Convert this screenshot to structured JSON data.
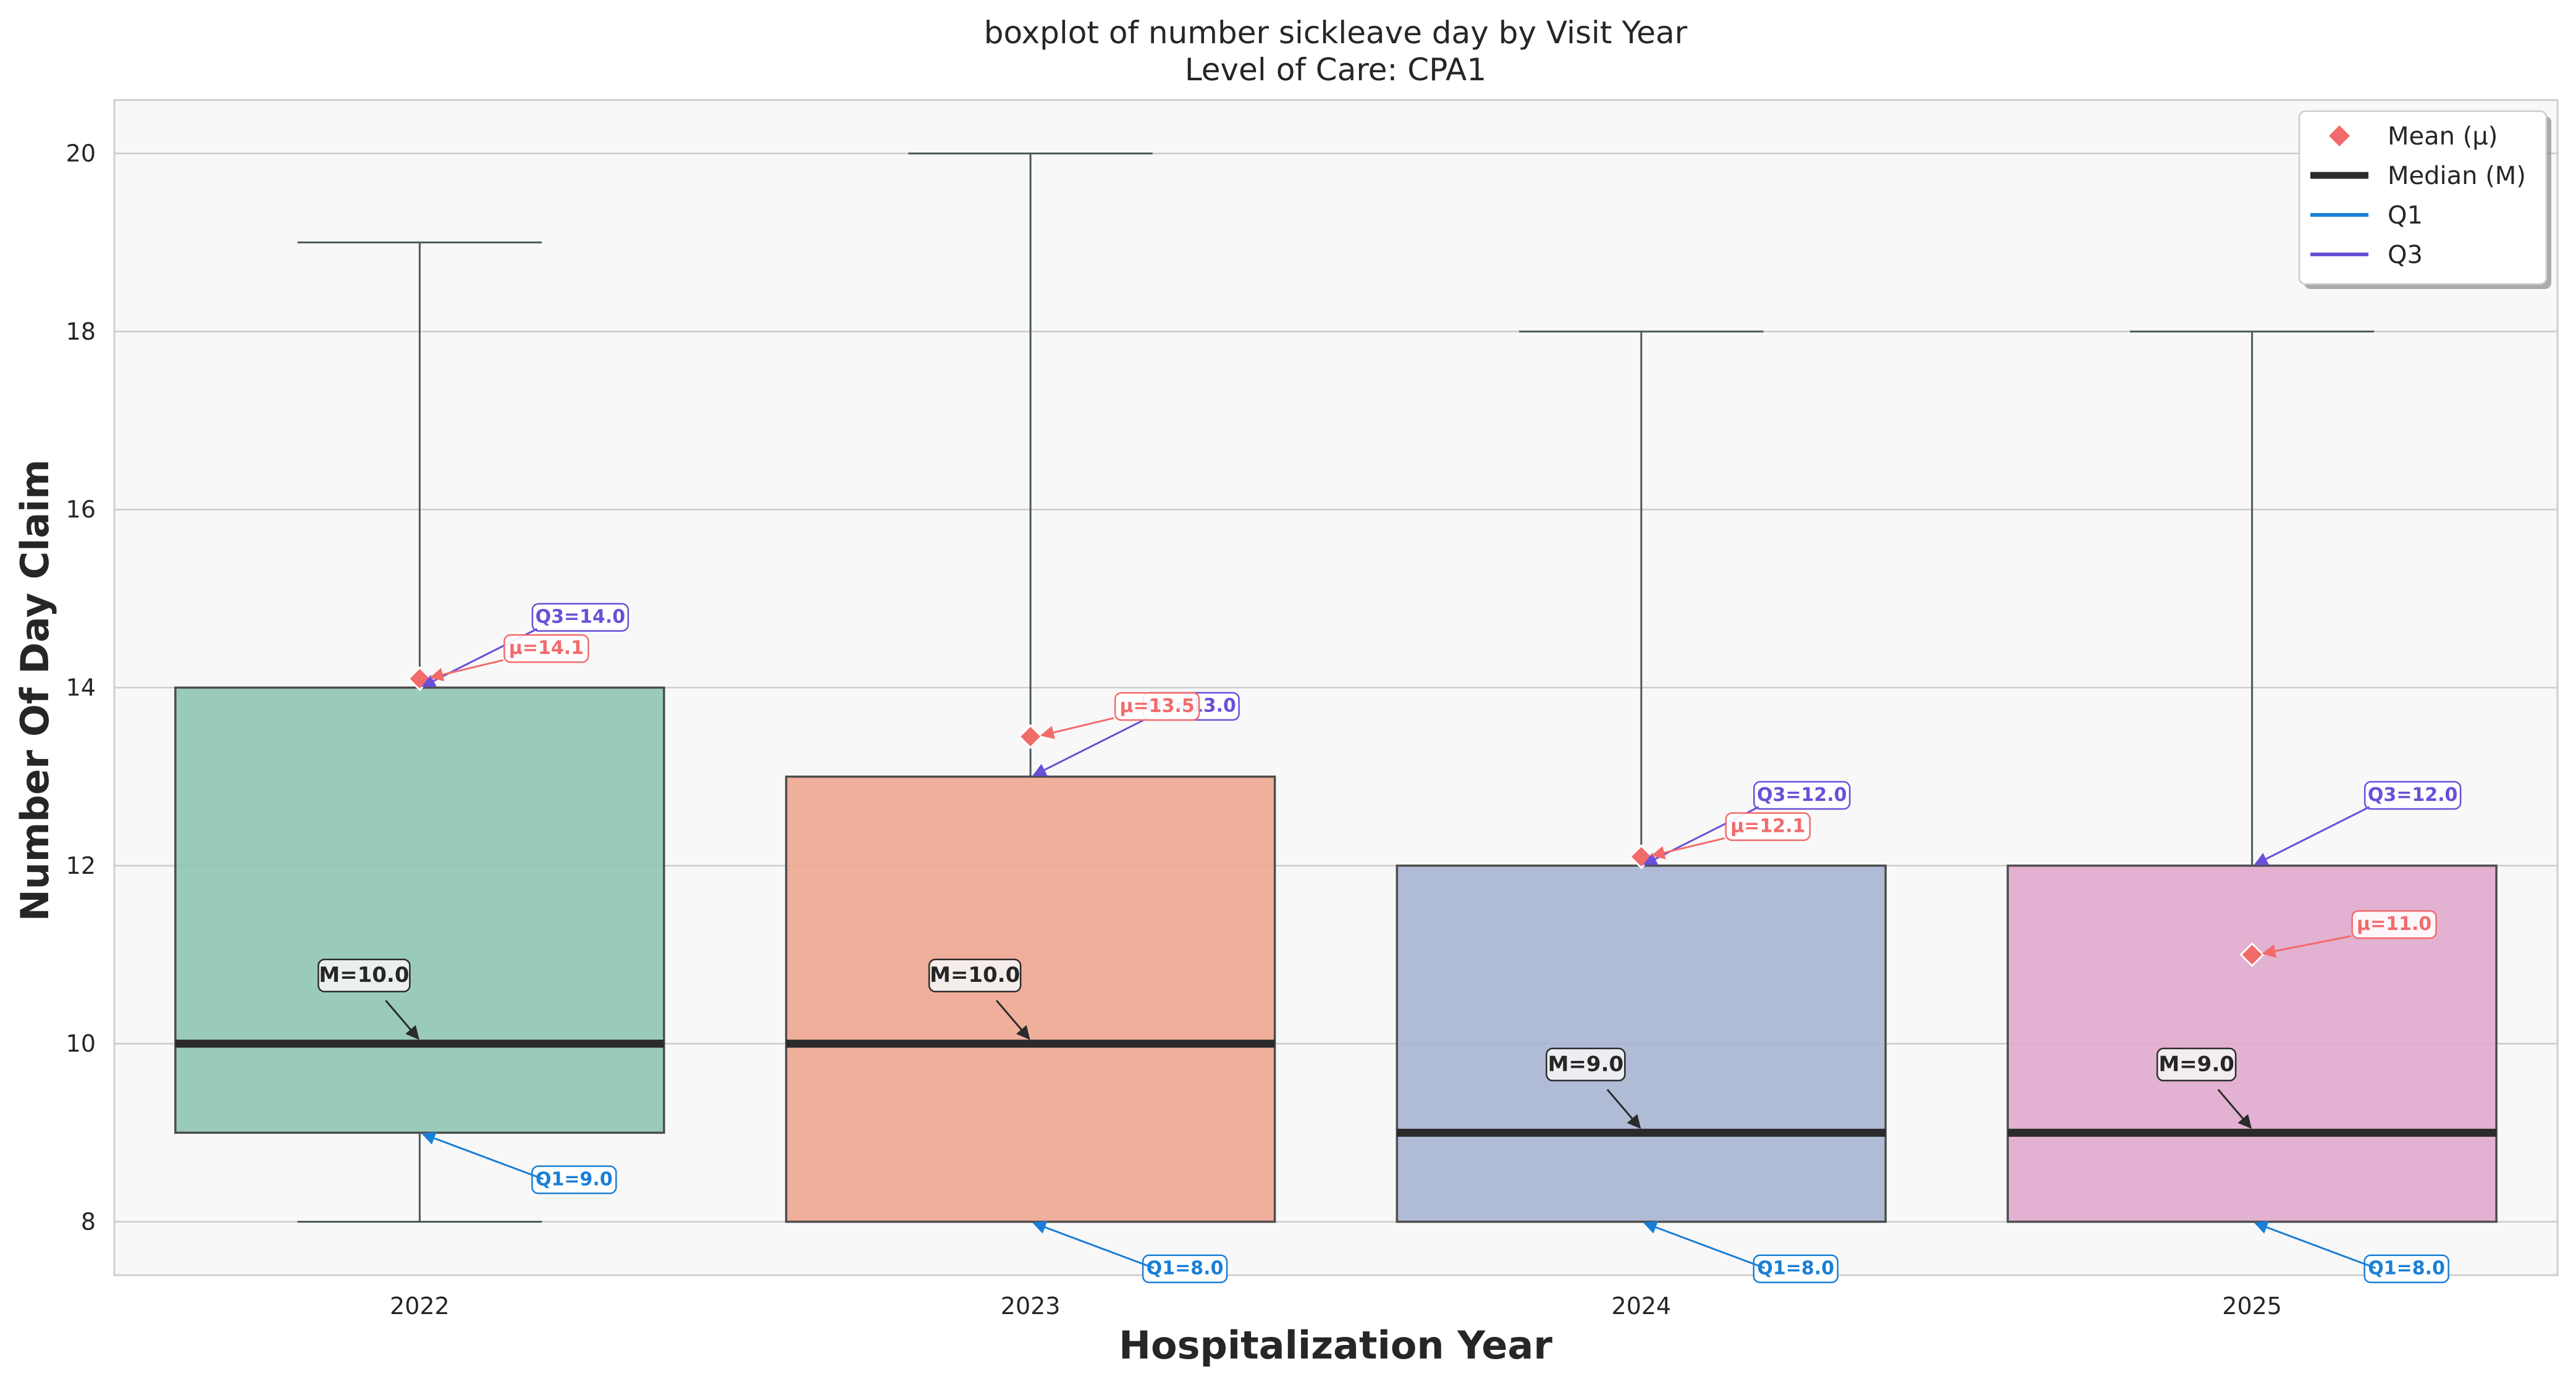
{
  "chart_data": {
    "type": "box",
    "title": "boxplot of number sickleave day by Visit Year",
    "subtitle": "Level of Care: CPA1",
    "xlabel": "Hospitalization Year",
    "ylabel": "Number Of Day Claim",
    "ylim": [
      7.4,
      20.6
    ],
    "yticks": [
      8,
      10,
      12,
      14,
      16,
      18,
      20
    ],
    "grid": true,
    "legend_position": "top-right",
    "categories": [
      "2022",
      "2023",
      "2024",
      "2025"
    ],
    "boxes": [
      {
        "category": "2022",
        "whisker_low": 8,
        "q1": 9,
        "median": 10,
        "q3": 14,
        "whisker_high": 19,
        "mean": 14.1,
        "color": "#8fc5b1",
        "labels": {
          "median": "M=10.0",
          "q1": "Q1=9.0",
          "q3": "Q3=14.0",
          "mean": "μ=14.1"
        }
      },
      {
        "category": "2023",
        "whisker_low": 8,
        "q1": 8,
        "median": 10,
        "q3": 13,
        "whisker_high": 20,
        "mean": 13.45,
        "color": "#eea68f",
        "labels": {
          "median": "M=10.0",
          "q1": "Q1=8.0",
          "q3": "Q3=13.0",
          "mean": "μ=13.5"
        }
      },
      {
        "category": "2024",
        "whisker_low": 8,
        "q1": 8,
        "median": 9,
        "q3": 12,
        "whisker_high": 18,
        "mean": 12.1,
        "color": "#a7b4d1",
        "labels": {
          "median": "M=9.0",
          "q1": "Q1=8.0",
          "q3": "Q3=12.0",
          "mean": "μ=12.1"
        }
      },
      {
        "category": "2025",
        "whisker_low": 8,
        "q1": 8,
        "median": 9,
        "q3": 12,
        "whisker_high": 18,
        "mean": 11.0,
        "color": "#e0a8cc",
        "labels": {
          "median": "M=9.0",
          "q1": "Q1=8.0",
          "q3": "Q3=12.0",
          "mean": "μ=11.0"
        }
      }
    ],
    "legend": [
      {
        "label": "Mean (μ)",
        "marker": "diamond",
        "color": "#f26b6b"
      },
      {
        "label": "Median (M)",
        "marker": "line",
        "color": "#2b2b2b"
      },
      {
        "label": "Q1",
        "marker": "line",
        "color": "#1a7fd6"
      },
      {
        "label": "Q3",
        "marker": "line",
        "color": "#6a4fd8"
      }
    ],
    "colors": {
      "mean": "#f26b6b",
      "median": "#2b2b2b",
      "q1": "#1a7fd6",
      "q3": "#6a4fd8",
      "whisker": "#4a5a5a",
      "plot_bg": "#f8f8f8",
      "grid": "#cccccc"
    }
  }
}
